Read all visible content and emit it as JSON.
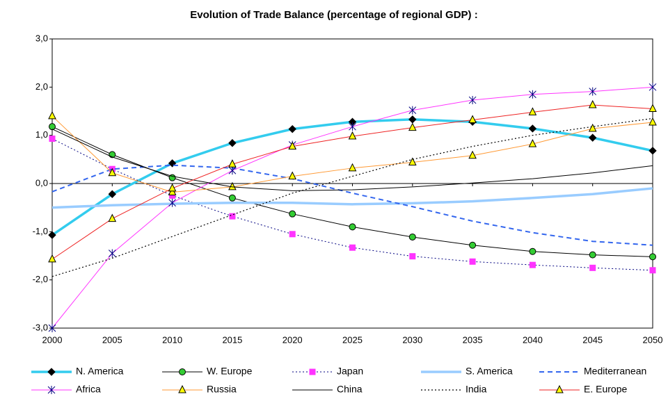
{
  "chart_data": {
    "type": "line",
    "title": "Evolution of Trade Balance (percentage of regional GDP) :",
    "x": [
      2000,
      2005,
      2010,
      2015,
      2020,
      2025,
      2030,
      2035,
      2040,
      2045,
      2050
    ],
    "xlim": [
      2000,
      2050
    ],
    "xticks": [
      2000,
      2005,
      2010,
      2015,
      2020,
      2025,
      2030,
      2035,
      2040,
      2045,
      2050
    ],
    "ylim": [
      -3,
      3
    ],
    "yticks": [
      {
        "value": 3,
        "label": "3,0"
      },
      {
        "value": 2,
        "label": "2,0"
      },
      {
        "value": 1,
        "label": "1,0"
      },
      {
        "value": 0,
        "label": "0,0"
      },
      {
        "value": -1,
        "label": "-1,0"
      },
      {
        "value": -2,
        "label": "-2,0"
      },
      {
        "value": -3,
        "label": "-3,0"
      }
    ],
    "grid": false,
    "legend": "bottom",
    "series": [
      {
        "name": "N. America",
        "color": "#33ccee",
        "width": 3.5,
        "dash": "solid",
        "marker": "diamond",
        "marker_fill": "#000000",
        "values": [
          -1.07,
          -0.22,
          0.42,
          0.84,
          1.13,
          1.28,
          1.33,
          1.28,
          1.14,
          0.95,
          0.68
        ]
      },
      {
        "name": "W. Europe",
        "color": "#000000",
        "width": 1,
        "dash": "solid",
        "marker": "circle",
        "marker_fill": "#33cc33",
        "values": [
          1.18,
          0.6,
          0.12,
          -0.3,
          -0.63,
          -0.9,
          -1.11,
          -1.28,
          -1.41,
          -1.48,
          -1.52
        ]
      },
      {
        "name": "Japan",
        "color": "#000080",
        "width": 1,
        "dash": "dotted",
        "marker": "square",
        "marker_fill": "#ff33ff",
        "values": [
          0.93,
          0.3,
          -0.25,
          -0.68,
          -1.05,
          -1.33,
          -1.51,
          -1.62,
          -1.69,
          -1.75,
          -1.8
        ]
      },
      {
        "name": "S. America",
        "color": "#99ccff",
        "width": 3.5,
        "dash": "solid",
        "marker": "none",
        "marker_fill": "#99ccff",
        "values": [
          -0.5,
          -0.45,
          -0.42,
          -0.4,
          -0.4,
          -0.43,
          -0.41,
          -0.37,
          -0.3,
          -0.22,
          -0.1
        ]
      },
      {
        "name": "Mediterranean",
        "color": "#3366ee",
        "width": 2,
        "dash": "dashed",
        "marker": "none",
        "marker_fill": "#3366ee",
        "values": [
          -0.17,
          0.3,
          0.38,
          0.32,
          0.1,
          -0.2,
          -0.48,
          -0.78,
          -1.02,
          -1.2,
          -1.28
        ]
      },
      {
        "name": "Africa",
        "color": "#ff33ff",
        "width": 1,
        "dash": "solid",
        "marker": "star",
        "marker_fill": "#000080",
        "values": [
          -3.0,
          -1.45,
          -0.4,
          0.27,
          0.8,
          1.18,
          1.52,
          1.73,
          1.85,
          1.91,
          2.0
        ]
      },
      {
        "name": "Russia",
        "color": "#ff9933",
        "width": 1,
        "dash": "solid",
        "marker": "triangle",
        "marker_fill": "#999900",
        "values": [
          1.4,
          0.22,
          -0.18,
          -0.07,
          0.15,
          0.32,
          0.44,
          0.58,
          0.82,
          1.14,
          1.27
        ]
      },
      {
        "name": "China",
        "color": "#000000",
        "width": 1,
        "dash": "solid",
        "marker": "none",
        "marker_fill": "#000000",
        "values": [
          1.13,
          0.55,
          0.15,
          -0.07,
          -0.15,
          -0.13,
          -0.07,
          0.01,
          0.1,
          0.22,
          0.37
        ]
      },
      {
        "name": "India",
        "color": "#000000",
        "width": 1.2,
        "dash": "dotted",
        "marker": "none",
        "marker_fill": "#000000",
        "values": [
          -1.93,
          -1.55,
          -1.1,
          -0.65,
          -0.2,
          0.15,
          0.5,
          0.77,
          1.0,
          1.18,
          1.35
        ]
      },
      {
        "name": "E. Europe",
        "color": "#ee2222",
        "width": 1,
        "dash": "solid",
        "marker": "triangle",
        "marker_fill": "#ffff00",
        "values": [
          -1.57,
          -0.73,
          -0.1,
          0.4,
          0.77,
          0.98,
          1.16,
          1.32,
          1.48,
          1.63,
          1.55
        ]
      }
    ]
  }
}
